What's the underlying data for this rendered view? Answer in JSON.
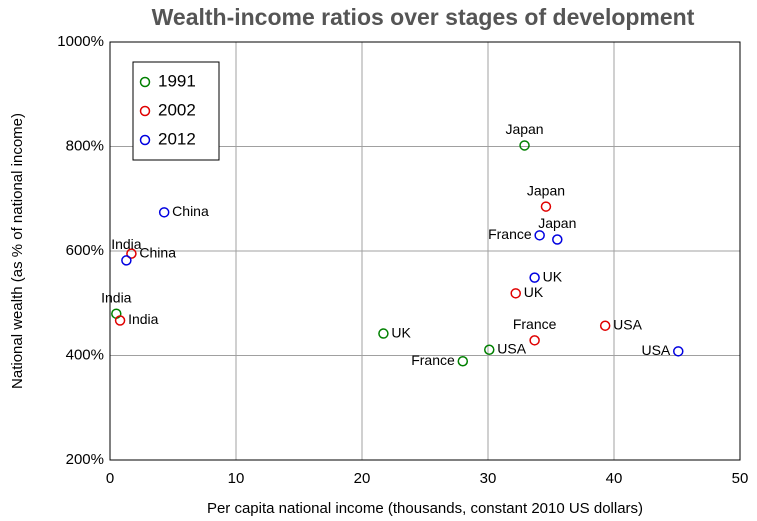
{
  "chart_data": {
    "type": "scatter",
    "title": "Wealth-income ratios over stages of development",
    "x_label": "Per capita national income (thousands, constant 2010 US dollars)",
    "y_label": "National wealth (as % of national income)",
    "xlim": [
      0,
      50
    ],
    "xticks": [
      0,
      10,
      20,
      30,
      40,
      50
    ],
    "ylim": [
      200,
      1000
    ],
    "yticks": [
      {
        "value": 200,
        "label": "200%"
      },
      {
        "value": 400,
        "label": "400%"
      },
      {
        "value": 600,
        "label": "600%"
      },
      {
        "value": 800,
        "label": "800%"
      },
      {
        "value": 1000,
        "label": "1000%"
      }
    ],
    "grid": true,
    "legend": "upper left",
    "series": [
      {
        "name": "1991",
        "color": "#008000",
        "labels": [
          "Japan",
          "UK",
          "France",
          "USA",
          "India"
        ],
        "x": [
          32.9,
          21.7,
          28.0,
          30.1,
          0.5
        ],
        "values": [
          802,
          442,
          389,
          411,
          480
        ]
      },
      {
        "name": "2002",
        "color": "#e00000",
        "labels": [
          "Japan",
          "UK",
          "France",
          "USA",
          "China",
          "India"
        ],
        "x": [
          34.6,
          32.2,
          33.7,
          39.3,
          1.7,
          0.8
        ],
        "values": [
          685,
          519,
          429,
          457,
          595,
          467
        ]
      },
      {
        "name": "2012",
        "color": "#0000e0",
        "labels": [
          "China",
          "India",
          "Japan",
          "France",
          "UK",
          "USA"
        ],
        "x": [
          4.3,
          1.3,
          35.5,
          34.1,
          33.7,
          45.1
        ],
        "values": [
          674,
          582,
          622,
          630,
          549,
          408
        ]
      }
    ]
  }
}
